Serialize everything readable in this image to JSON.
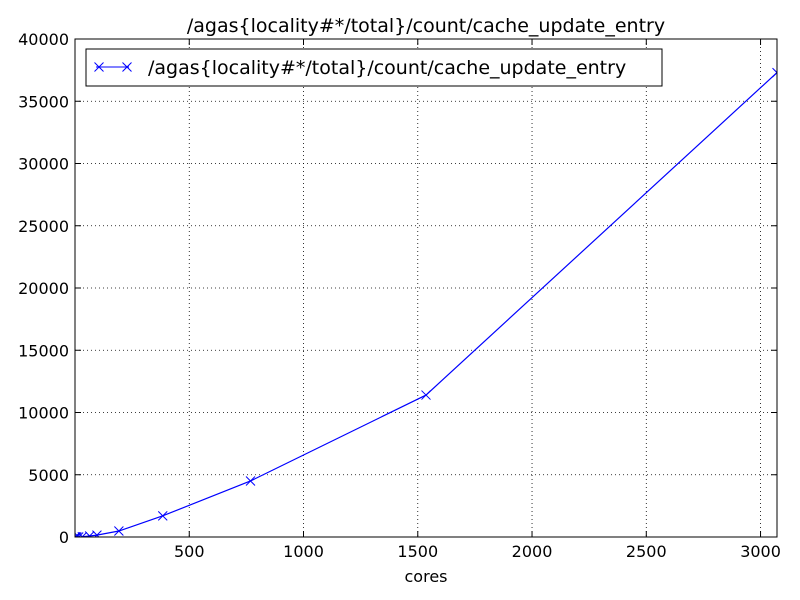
{
  "chart_data": {
    "type": "line",
    "title": "/agas{locality#*/total}/count/cache_update_entry",
    "xlabel": "cores",
    "ylabel": "",
    "xlim": [
      0,
      3072
    ],
    "ylim": [
      0,
      40000
    ],
    "xticks": [
      500,
      1000,
      1500,
      2000,
      2500,
      3000
    ],
    "yticks": [
      0,
      5000,
      10000,
      15000,
      20000,
      25000,
      30000,
      35000,
      40000
    ],
    "grid": true,
    "legend_position": "top-left",
    "series": [
      {
        "name": "/agas{locality#*/total}/count/cache_update_entry",
        "color": "#0000ff",
        "marker": "x",
        "x": [
          1,
          2,
          4,
          8,
          16,
          32,
          64,
          96,
          192,
          384,
          768,
          1536,
          3072
        ],
        "y": [
          0,
          0,
          0,
          0,
          0,
          20,
          80,
          150,
          480,
          1700,
          4500,
          11400,
          37300
        ]
      }
    ]
  }
}
